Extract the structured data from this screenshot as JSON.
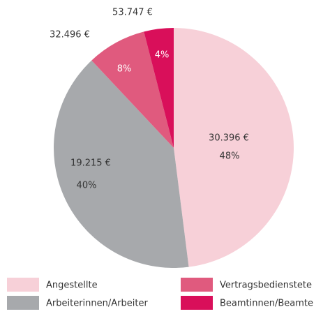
{
  "chart_data": {
    "type": "pie",
    "categories": [
      "Angestellte",
      "Arbeiterinnen/Arbeiter",
      "Vertragsbedienstete",
      "Beamtinnen/Beamte"
    ],
    "values": [
      48,
      40,
      8,
      4
    ],
    "value_labels": [
      "48%",
      "40%",
      "8%",
      "4%"
    ],
    "annotations": [
      "30.396 €",
      "19.215 €",
      "32.496 €",
      "53.747 €"
    ],
    "colors": [
      "#f7d0d8",
      "#a7a9ac",
      "#e05a7e",
      "#d90f5a"
    ]
  }
}
